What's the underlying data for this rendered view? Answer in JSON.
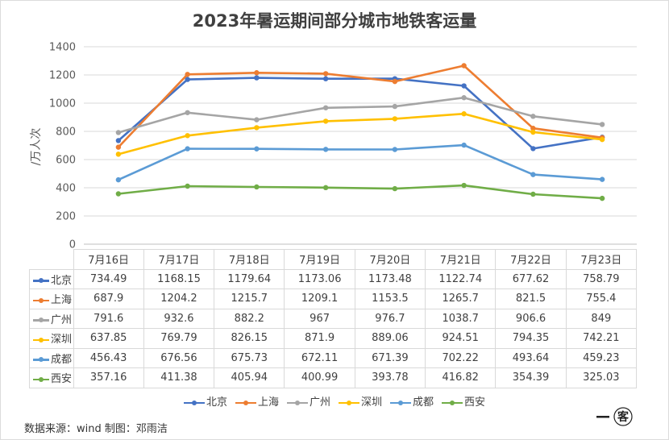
{
  "chart_data": {
    "type": "line",
    "title": "2023年暑运期间部分城市地铁客运量",
    "ylabel": "/万人次",
    "ylim": [
      0,
      1400
    ],
    "yticks": [
      "0",
      "200",
      "400",
      "600",
      "800",
      "1000",
      "1200",
      "1400"
    ],
    "ytick_values": [
      0,
      200,
      400,
      600,
      800,
      1000,
      1200,
      1400
    ],
    "categories": [
      "7月16日",
      "7月17日",
      "7月18日",
      "7月19日",
      "7月20日",
      "7月21日",
      "7月22日",
      "7月23日"
    ],
    "series": [
      {
        "name": "北京",
        "color": "#4472c4",
        "values": [
          734.49,
          1168.15,
          1179.64,
          1173.06,
          1173.48,
          1122.74,
          677.62,
          758.79
        ],
        "labels": [
          "734.49",
          "1168.15",
          "1179.64",
          "1173.06",
          "1173.48",
          "1122.74",
          "677.62",
          "758.79"
        ]
      },
      {
        "name": "上海",
        "color": "#ed7d31",
        "values": [
          687.9,
          1204.2,
          1215.7,
          1209.1,
          1153.5,
          1265.7,
          821.5,
          755.4
        ],
        "labels": [
          "687.9",
          "1204.2",
          "1215.7",
          "1209.1",
          "1153.5",
          "1265.7",
          "821.5",
          "755.4"
        ]
      },
      {
        "name": "广州",
        "color": "#a5a5a5",
        "values": [
          791.6,
          932.6,
          882.2,
          967,
          976.7,
          1038.7,
          906.6,
          849
        ],
        "labels": [
          "791.6",
          "932.6",
          "882.2",
          "967",
          "976.7",
          "1038.7",
          "906.6",
          "849"
        ]
      },
      {
        "name": "深圳",
        "color": "#ffc000",
        "values": [
          637.85,
          769.79,
          826.15,
          871.9,
          889.06,
          924.51,
          794.35,
          742.21
        ],
        "labels": [
          "637.85",
          "769.79",
          "826.15",
          "871.9",
          "889.06",
          "924.51",
          "794.35",
          "742.21"
        ]
      },
      {
        "name": "成都",
        "color": "#5b9bd5",
        "values": [
          456.43,
          676.56,
          675.73,
          672.11,
          671.39,
          702.22,
          493.64,
          459.23
        ],
        "labels": [
          "456.43",
          "676.56",
          "675.73",
          "672.11",
          "671.39",
          "702.22",
          "493.64",
          "459.23"
        ]
      },
      {
        "name": "西安",
        "color": "#70ad47",
        "values": [
          357.16,
          411.38,
          405.94,
          400.99,
          393.78,
          416.82,
          354.39,
          325.03
        ],
        "labels": [
          "357.16",
          "411.38",
          "405.94",
          "400.99",
          "393.78",
          "416.82",
          "354.39",
          "325.03"
        ]
      }
    ],
    "grid": true,
    "legend": "bottom"
  },
  "footer": {
    "source": "数据来源：wind  制图：邓雨洁"
  },
  "logo": {
    "text": "一客"
  }
}
